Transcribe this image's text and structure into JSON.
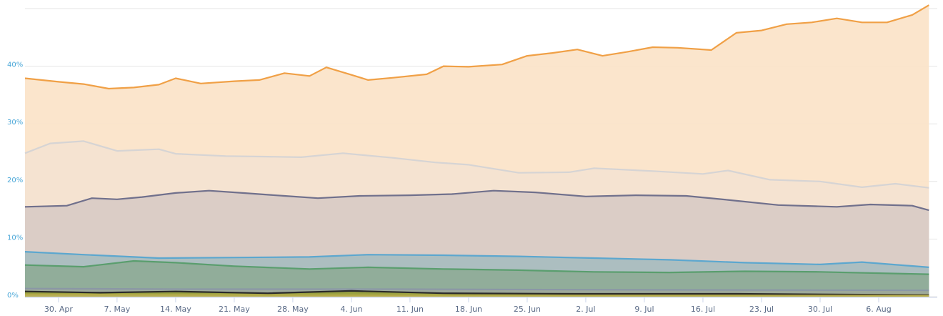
{
  "chart_data": {
    "type": "area",
    "stacked": false,
    "grid": true,
    "legend": "none",
    "title": "",
    "xlabel": "",
    "ylabel": "",
    "ylim": [
      0,
      50
    ],
    "xlim": [
      "2018-04-26",
      "2018-08-13"
    ],
    "y_ticks": [
      {
        "value": 0,
        "label": "0%"
      },
      {
        "value": 10,
        "label": "10%"
      },
      {
        "value": 20,
        "label": "20%"
      },
      {
        "value": 30,
        "label": "30%"
      },
      {
        "value": 40,
        "label": "40%"
      }
    ],
    "x_ticks": [
      {
        "date": "2018-04-30",
        "label": "30. Apr"
      },
      {
        "date": "2018-05-07",
        "label": "7. May"
      },
      {
        "date": "2018-05-14",
        "label": "14. May"
      },
      {
        "date": "2018-05-21",
        "label": "21. May"
      },
      {
        "date": "2018-05-28",
        "label": "28. May"
      },
      {
        "date": "2018-06-04",
        "label": "4. Jun"
      },
      {
        "date": "2018-06-11",
        "label": "11. Jun"
      },
      {
        "date": "2018-06-18",
        "label": "18. Jun"
      },
      {
        "date": "2018-06-25",
        "label": "25. Jun"
      },
      {
        "date": "2018-07-02",
        "label": "2. Jul"
      },
      {
        "date": "2018-07-09",
        "label": "9. Jul"
      },
      {
        "date": "2018-07-16",
        "label": "16. Jul"
      },
      {
        "date": "2018-07-23",
        "label": "23. Jul"
      },
      {
        "date": "2018-07-30",
        "label": "30. Jul"
      },
      {
        "date": "2018-08-06",
        "label": "6. Aug"
      }
    ],
    "series": [
      {
        "color": "#f0a046",
        "fill": "#fbe3c8",
        "points": [
          [
            "2018-04-26",
            37.9
          ],
          [
            "2018-04-30",
            37.3
          ],
          [
            "2018-05-03",
            36.9
          ],
          [
            "2018-05-06",
            36.1
          ],
          [
            "2018-05-09",
            36.3
          ],
          [
            "2018-05-12",
            36.8
          ],
          [
            "2018-05-14",
            37.9
          ],
          [
            "2018-05-17",
            37.0
          ],
          [
            "2018-05-21",
            37.4
          ],
          [
            "2018-05-24",
            37.6
          ],
          [
            "2018-05-27",
            38.8
          ],
          [
            "2018-05-30",
            38.3
          ],
          [
            "2018-06-01",
            39.8
          ],
          [
            "2018-06-04",
            38.5
          ],
          [
            "2018-06-06",
            37.6
          ],
          [
            "2018-06-09",
            38.0
          ],
          [
            "2018-06-13",
            38.6
          ],
          [
            "2018-06-15",
            40.0
          ],
          [
            "2018-06-18",
            39.9
          ],
          [
            "2018-06-22",
            40.3
          ],
          [
            "2018-06-25",
            41.8
          ],
          [
            "2018-06-28",
            42.3
          ],
          [
            "2018-07-01",
            42.9
          ],
          [
            "2018-07-04",
            41.8
          ],
          [
            "2018-07-07",
            42.5
          ],
          [
            "2018-07-10",
            43.3
          ],
          [
            "2018-07-13",
            43.2
          ],
          [
            "2018-07-17",
            42.8
          ],
          [
            "2018-07-20",
            45.8
          ],
          [
            "2018-07-23",
            46.2
          ],
          [
            "2018-07-26",
            47.3
          ],
          [
            "2018-07-29",
            47.6
          ],
          [
            "2018-08-01",
            48.3
          ],
          [
            "2018-08-04",
            47.6
          ],
          [
            "2018-08-07",
            47.6
          ],
          [
            "2018-08-10",
            48.9
          ],
          [
            "2018-08-12",
            50.6
          ]
        ]
      },
      {
        "color": "#d6d4d4",
        "fill": "#f4e3d1",
        "points": [
          [
            "2018-04-26",
            24.9
          ],
          [
            "2018-04-29",
            26.6
          ],
          [
            "2018-05-03",
            27.0
          ],
          [
            "2018-05-07",
            25.3
          ],
          [
            "2018-05-12",
            25.6
          ],
          [
            "2018-05-14",
            24.8
          ],
          [
            "2018-05-20",
            24.4
          ],
          [
            "2018-05-25",
            24.3
          ],
          [
            "2018-05-29",
            24.2
          ],
          [
            "2018-06-03",
            24.9
          ],
          [
            "2018-06-09",
            24.1
          ],
          [
            "2018-06-14",
            23.3
          ],
          [
            "2018-06-18",
            22.9
          ],
          [
            "2018-06-24",
            21.5
          ],
          [
            "2018-06-30",
            21.6
          ],
          [
            "2018-07-03",
            22.3
          ],
          [
            "2018-07-10",
            21.8
          ],
          [
            "2018-07-16",
            21.3
          ],
          [
            "2018-07-19",
            21.9
          ],
          [
            "2018-07-24",
            20.3
          ],
          [
            "2018-07-30",
            20.0
          ],
          [
            "2018-08-04",
            19.0
          ],
          [
            "2018-08-08",
            19.6
          ],
          [
            "2018-08-12",
            18.9
          ]
        ]
      },
      {
        "color": "#70708c",
        "fill": "#d8cbc4",
        "points": [
          [
            "2018-04-26",
            15.6
          ],
          [
            "2018-05-01",
            15.8
          ],
          [
            "2018-05-04",
            17.1
          ],
          [
            "2018-05-07",
            16.9
          ],
          [
            "2018-05-10",
            17.3
          ],
          [
            "2018-05-14",
            18.0
          ],
          [
            "2018-05-18",
            18.4
          ],
          [
            "2018-05-22",
            18.0
          ],
          [
            "2018-05-27",
            17.5
          ],
          [
            "2018-05-31",
            17.1
          ],
          [
            "2018-06-05",
            17.5
          ],
          [
            "2018-06-11",
            17.6
          ],
          [
            "2018-06-16",
            17.8
          ],
          [
            "2018-06-21",
            18.4
          ],
          [
            "2018-06-26",
            18.1
          ],
          [
            "2018-07-02",
            17.4
          ],
          [
            "2018-07-08",
            17.6
          ],
          [
            "2018-07-14",
            17.5
          ],
          [
            "2018-07-19",
            16.8
          ],
          [
            "2018-07-25",
            15.9
          ],
          [
            "2018-08-01",
            15.6
          ],
          [
            "2018-08-05",
            16.0
          ],
          [
            "2018-08-10",
            15.8
          ],
          [
            "2018-08-12",
            15.0
          ]
        ]
      },
      {
        "color": "#5ca7cf",
        "fill": "#a8bdbf",
        "points": [
          [
            "2018-04-26",
            7.8
          ],
          [
            "2018-05-03",
            7.3
          ],
          [
            "2018-05-12",
            6.7
          ],
          [
            "2018-05-21",
            6.8
          ],
          [
            "2018-05-30",
            6.9
          ],
          [
            "2018-06-06",
            7.3
          ],
          [
            "2018-06-15",
            7.2
          ],
          [
            "2018-06-24",
            7.0
          ],
          [
            "2018-07-03",
            6.7
          ],
          [
            "2018-07-12",
            6.4
          ],
          [
            "2018-07-21",
            5.9
          ],
          [
            "2018-07-30",
            5.6
          ],
          [
            "2018-08-04",
            6.0
          ],
          [
            "2018-08-12",
            5.1
          ]
        ]
      },
      {
        "color": "#5a9e6e",
        "fill": "#8eab97",
        "points": [
          [
            "2018-04-26",
            5.5
          ],
          [
            "2018-05-03",
            5.2
          ],
          [
            "2018-05-09",
            6.2
          ],
          [
            "2018-05-14",
            5.9
          ],
          [
            "2018-05-21",
            5.3
          ],
          [
            "2018-05-30",
            4.8
          ],
          [
            "2018-06-06",
            5.1
          ],
          [
            "2018-06-15",
            4.8
          ],
          [
            "2018-06-24",
            4.6
          ],
          [
            "2018-07-03",
            4.3
          ],
          [
            "2018-07-12",
            4.2
          ],
          [
            "2018-07-21",
            4.4
          ],
          [
            "2018-07-30",
            4.3
          ],
          [
            "2018-08-12",
            3.9
          ]
        ]
      },
      {
        "color": "#8a97a6",
        "fill": "#9ea89a",
        "points": [
          [
            "2018-04-26",
            1.4
          ],
          [
            "2018-05-15",
            1.3
          ],
          [
            "2018-06-10",
            1.3
          ],
          [
            "2018-07-05",
            1.2
          ],
          [
            "2018-08-12",
            1.1
          ]
        ]
      },
      {
        "color": "#2b2b2b",
        "fill": "#9aa23a",
        "points": [
          [
            "2018-04-26",
            0.9
          ],
          [
            "2018-05-05",
            0.7
          ],
          [
            "2018-05-14",
            0.9
          ],
          [
            "2018-05-25",
            0.6
          ],
          [
            "2018-06-04",
            1.0
          ],
          [
            "2018-06-15",
            0.6
          ],
          [
            "2018-07-01",
            0.5
          ],
          [
            "2018-07-20",
            0.5
          ],
          [
            "2018-08-12",
            0.3
          ]
        ]
      },
      {
        "color": "#b4aa4a",
        "fill": "#b8b05a",
        "points": [
          [
            "2018-04-26",
            0.4
          ],
          [
            "2018-05-20",
            0.3
          ],
          [
            "2018-06-25",
            0.2
          ],
          [
            "2018-08-12",
            0.2
          ]
        ]
      }
    ]
  }
}
